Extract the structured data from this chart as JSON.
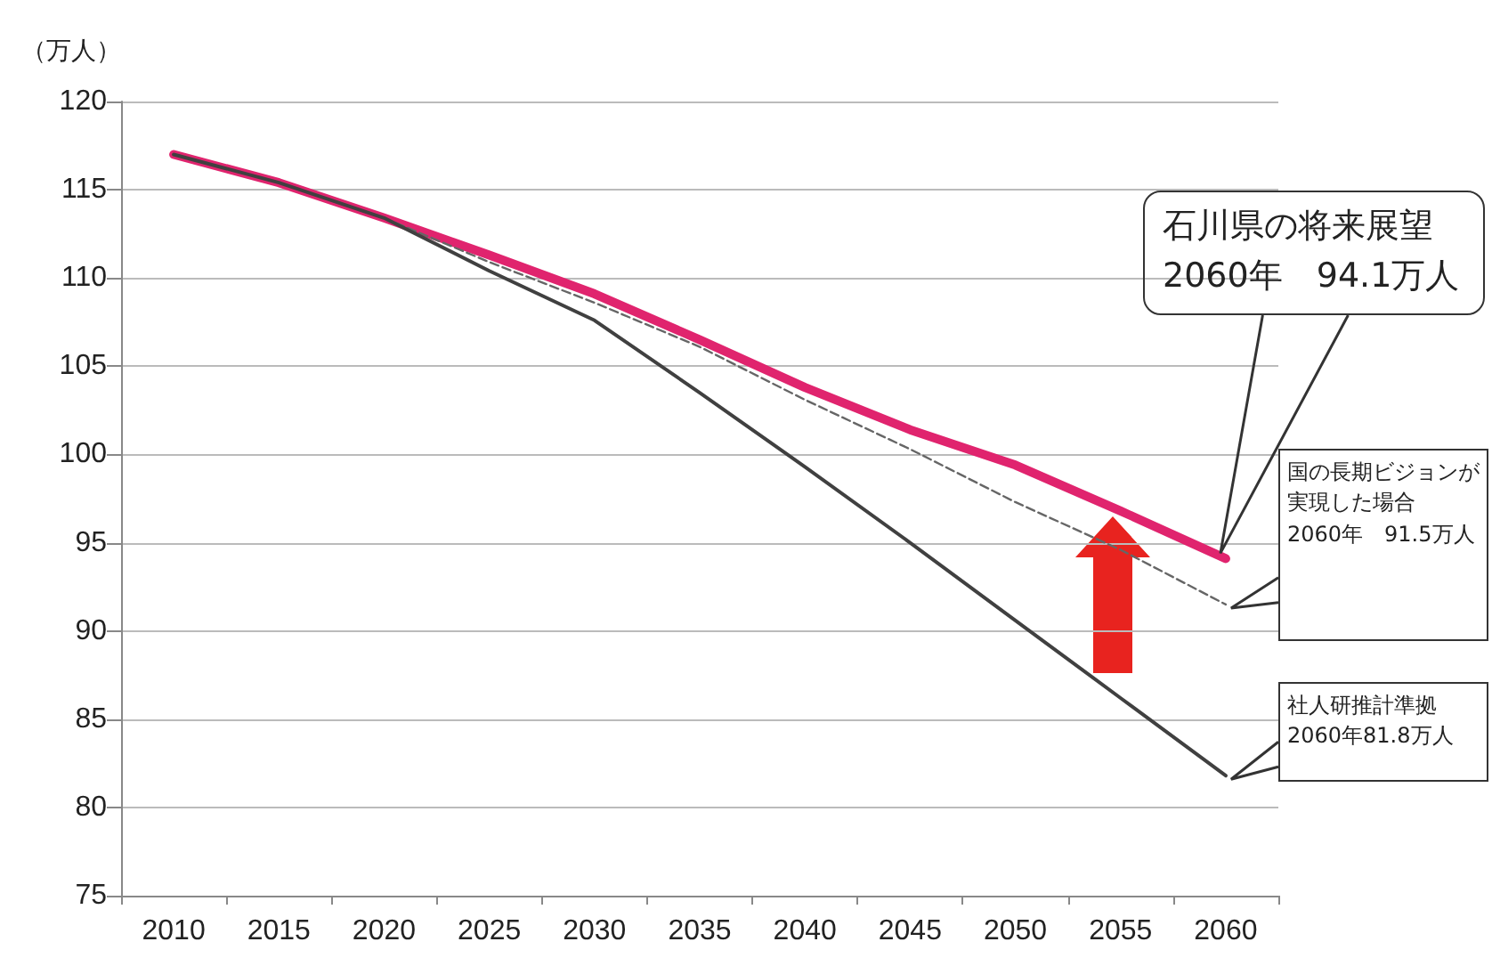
{
  "chart_data": {
    "type": "line",
    "ylabel": "（万人）",
    "categories": [
      "2010",
      "2015",
      "2020",
      "2025",
      "2030",
      "2035",
      "2040",
      "2045",
      "2050",
      "2055",
      "2060"
    ],
    "series": [
      {
        "color": "#e0246e",
        "values": [
          117,
          115.4,
          113.4,
          111.3,
          109.1,
          106.5,
          103.8,
          101.4,
          99.4,
          96.8,
          94.1
        ]
      },
      {
        "color": "#666666",
        "line_style": "dashed",
        "values": [
          null,
          null,
          113.4,
          110.9,
          108.6,
          106.1,
          103.1,
          100.3,
          97.3,
          94.6,
          91.5
        ]
      },
      {
        "color": "#404040",
        "values": [
          117,
          115.4,
          113.4,
          110.4,
          107.6,
          103.5,
          99.3,
          95,
          90.6,
          86.2,
          81.8
        ]
      }
    ],
    "ylim": [
      75,
      120
    ],
    "yticks": [
      75,
      80,
      85,
      90,
      95,
      100,
      105,
      110,
      115,
      120
    ],
    "grid": "y",
    "marker": "none",
    "annotations": [
      "石川県の将来展望\n2060年　94.1万人",
      "国の長期ビジョンが実現した場合\n2060年　91.5万人",
      "社人研推計準拠\n2060年81.8万人"
    ]
  }
}
